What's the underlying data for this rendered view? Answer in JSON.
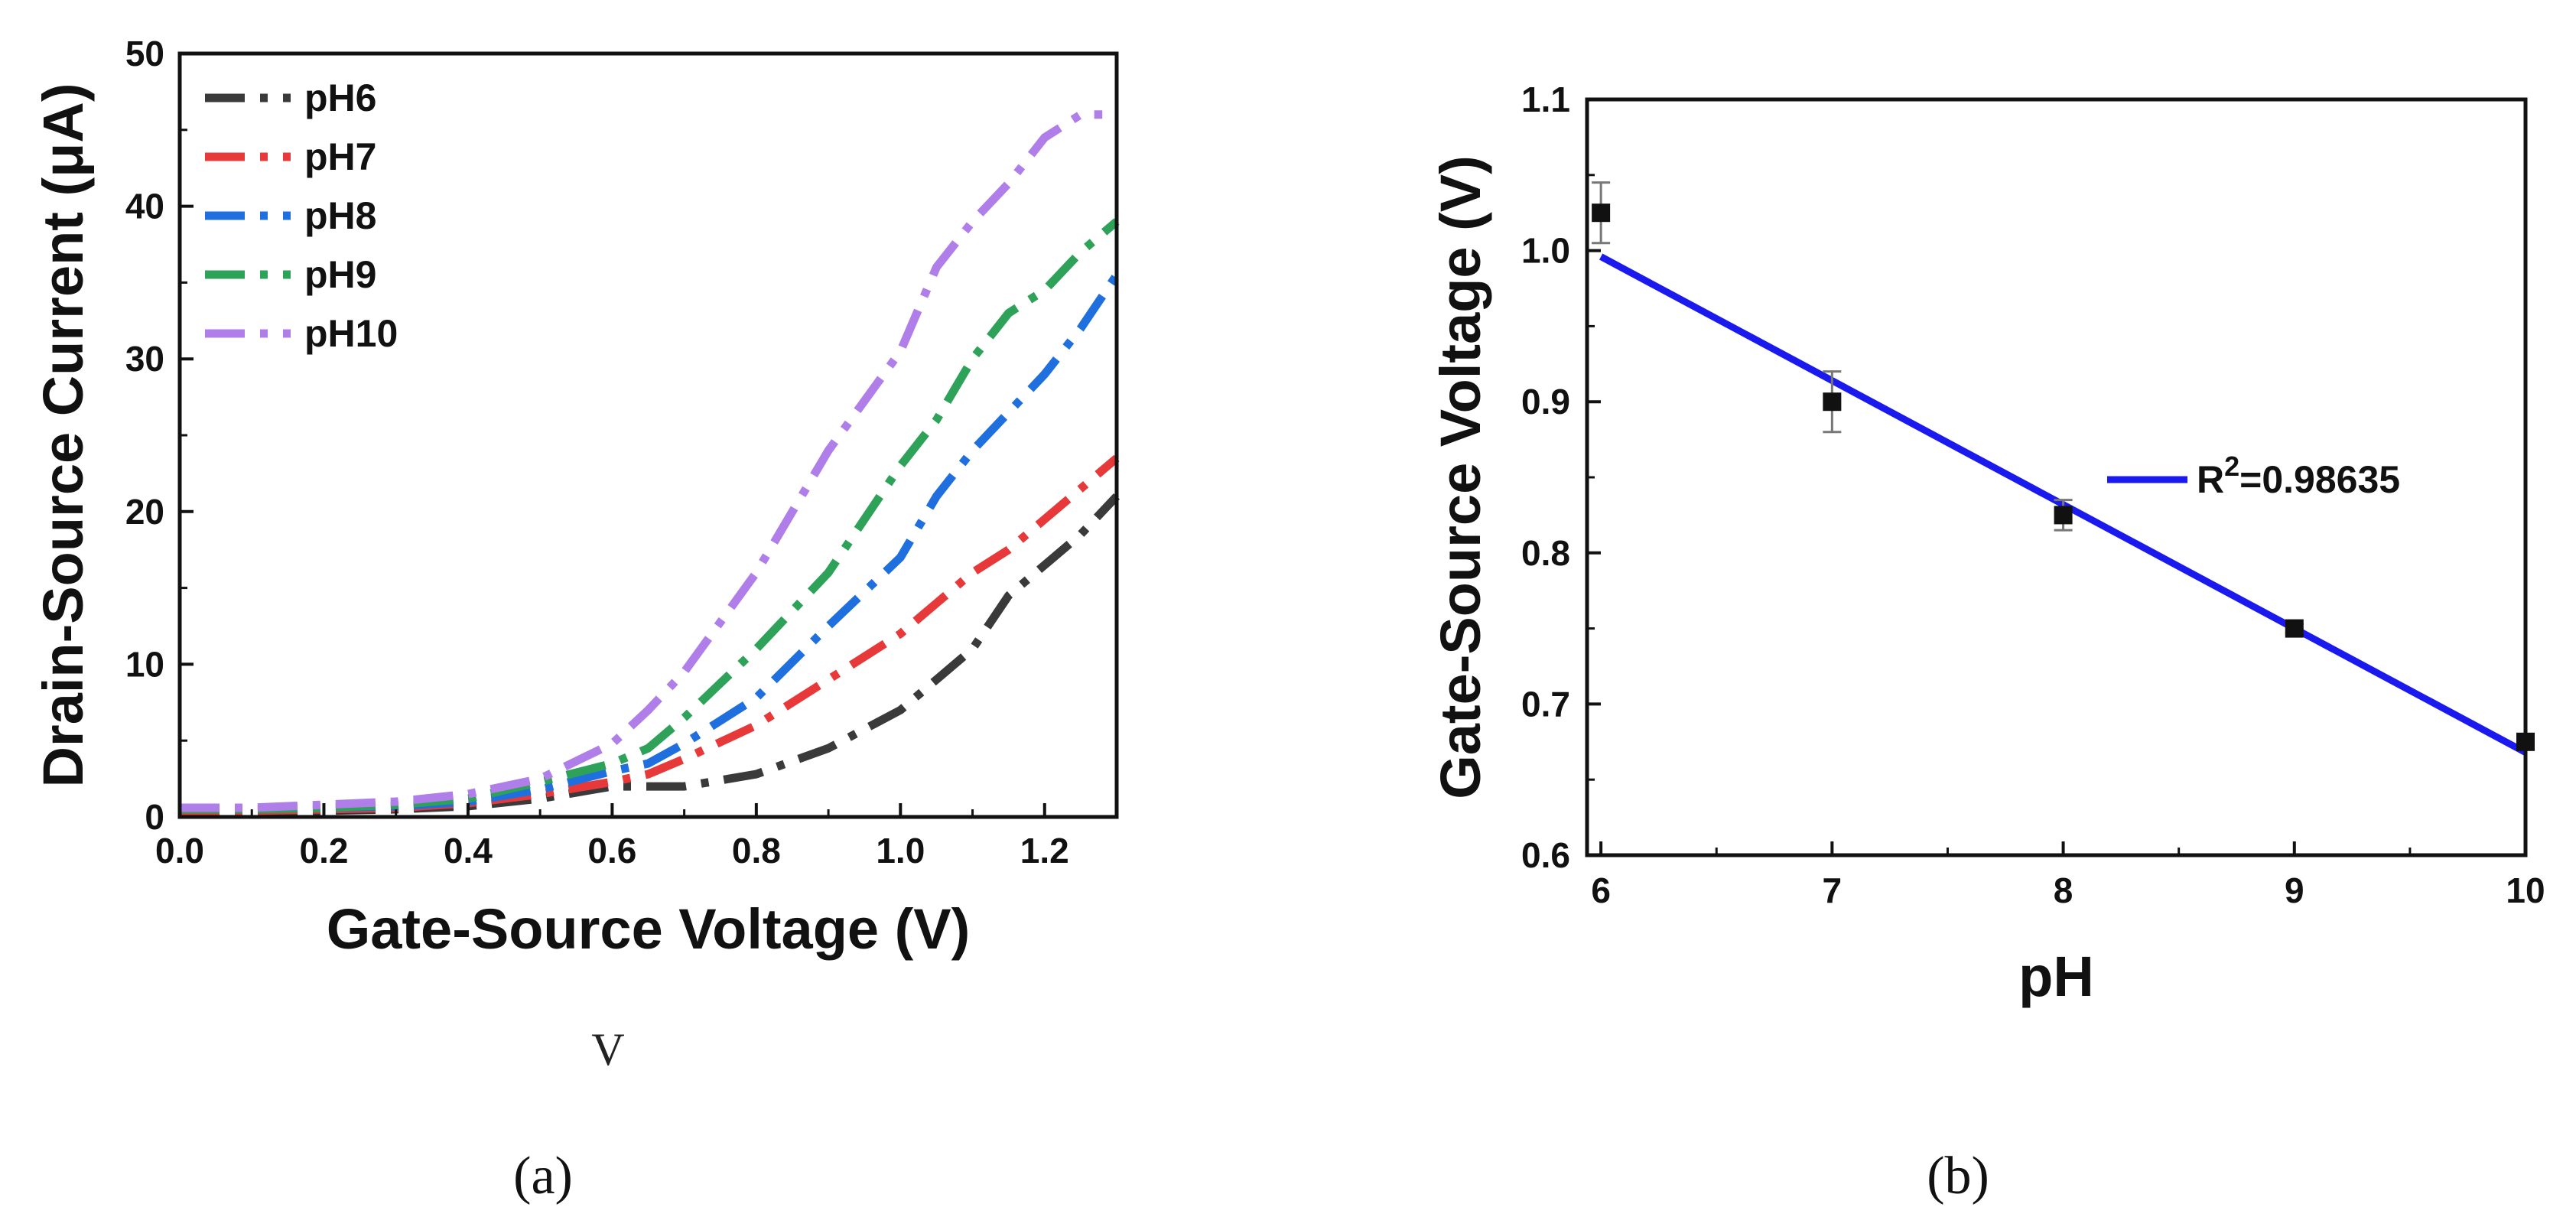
{
  "panel_labels": {
    "a": "(a)",
    "b": "(b)"
  },
  "stray_note": "V",
  "chart_data": [
    {
      "id": "a",
      "type": "line",
      "title": "",
      "xlabel": "Gate-Source Voltage (V)",
      "ylabel": "Drain-Source Current (μA)",
      "xlim": [
        0.0,
        1.3
      ],
      "ylim": [
        0,
        50
      ],
      "xticks": [
        0.0,
        0.2,
        0.4,
        0.6,
        0.8,
        1.0,
        1.2
      ],
      "xtick_labels": [
        "0.0",
        "0.2",
        "0.4",
        "0.6",
        "0.8",
        "1.0",
        "1.2"
      ],
      "yticks": [
        0,
        10,
        20,
        30,
        40,
        50
      ],
      "ytick_labels": [
        "0",
        "10",
        "20",
        "30",
        "40",
        "50"
      ],
      "legend_position": "top-left",
      "series": [
        {
          "name": "pH6",
          "color": "#3a3a3a",
          "x": [
            0.0,
            0.1,
            0.2,
            0.3,
            0.4,
            0.5,
            0.6,
            0.7,
            0.8,
            0.9,
            1.0,
            1.05,
            1.1,
            1.15,
            1.2,
            1.25,
            1.3
          ],
          "y": [
            0.3,
            0.3,
            0.4,
            0.5,
            0.7,
            1.2,
            2.0,
            2.0,
            2.8,
            4.5,
            7.0,
            9.0,
            11.0,
            14.5,
            16.5,
            18.5,
            21.0
          ]
        },
        {
          "name": "pH7",
          "color": "#e8393a",
          "x": [
            0.0,
            0.1,
            0.2,
            0.3,
            0.4,
            0.5,
            0.6,
            0.65,
            0.7,
            0.8,
            0.9,
            1.0,
            1.05,
            1.1,
            1.15,
            1.2,
            1.25,
            1.3
          ],
          "y": [
            0.4,
            0.4,
            0.5,
            0.6,
            0.9,
            1.5,
            2.3,
            2.8,
            3.8,
            6.0,
            9.0,
            12.0,
            14.0,
            16.0,
            17.5,
            19.5,
            21.5,
            23.5
          ]
        },
        {
          "name": "pH8",
          "color": "#1f6fde",
          "x": [
            0.0,
            0.1,
            0.2,
            0.3,
            0.4,
            0.5,
            0.6,
            0.65,
            0.7,
            0.8,
            0.9,
            1.0,
            1.05,
            1.1,
            1.15,
            1.2,
            1.25,
            1.3
          ],
          "y": [
            0.5,
            0.5,
            0.6,
            0.7,
            1.0,
            1.8,
            3.0,
            3.5,
            4.8,
            7.8,
            12.5,
            17.0,
            21.0,
            24.0,
            26.5,
            29.0,
            32.0,
            35.5
          ]
        },
        {
          "name": "pH9",
          "color": "#2fa25a",
          "x": [
            0.0,
            0.1,
            0.2,
            0.3,
            0.4,
            0.5,
            0.6,
            0.65,
            0.7,
            0.8,
            0.9,
            1.0,
            1.05,
            1.1,
            1.15,
            1.2,
            1.25,
            1.3
          ],
          "y": [
            0.5,
            0.5,
            0.6,
            0.8,
            1.2,
            2.3,
            3.5,
            4.5,
            6.5,
            11.0,
            16.0,
            23.0,
            26.0,
            30.0,
            33.0,
            34.5,
            37.0,
            39.0
          ]
        },
        {
          "name": "pH10",
          "color": "#b07ee8",
          "x": [
            0.0,
            0.1,
            0.2,
            0.3,
            0.4,
            0.5,
            0.6,
            0.65,
            0.7,
            0.8,
            0.9,
            1.0,
            1.05,
            1.1,
            1.15,
            1.2,
            1.25,
            1.28
          ],
          "y": [
            0.6,
            0.6,
            0.8,
            1.0,
            1.5,
            2.5,
            4.8,
            7.0,
            9.5,
            16.0,
            24.0,
            30.5,
            36.0,
            39.0,
            41.5,
            44.5,
            46.0,
            46.0
          ]
        }
      ]
    },
    {
      "id": "b",
      "type": "scatter",
      "title": "",
      "xlabel": "pH",
      "ylabel": "Gate-Source Voltage (V)",
      "xlim": [
        5.94,
        10.0
      ],
      "ylim": [
        0.6,
        1.1
      ],
      "xticks": [
        6,
        7,
        8,
        9,
        10
      ],
      "xtick_labels": [
        "6",
        "7",
        "8",
        "9",
        "10"
      ],
      "yticks": [
        0.6,
        0.7,
        0.8,
        0.9,
        1.0,
        1.1
      ],
      "ytick_labels": [
        "0.6",
        "0.7",
        "0.8",
        "0.9",
        "1.0",
        "1.1"
      ],
      "points": {
        "x": [
          6,
          7,
          8,
          9,
          10
        ],
        "y": [
          1.025,
          0.9,
          0.825,
          0.75,
          0.675
        ],
        "yerr": [
          0.02,
          0.02,
          0.01,
          0.003,
          0.005
        ]
      },
      "fit": {
        "x": [
          6,
          10
        ],
        "y": [
          0.996,
          0.668
        ],
        "color": "#1a1aee",
        "label_base": "R",
        "label_sup": "2",
        "label_value": "=0.98635"
      },
      "legend_position": "center-right"
    }
  ]
}
